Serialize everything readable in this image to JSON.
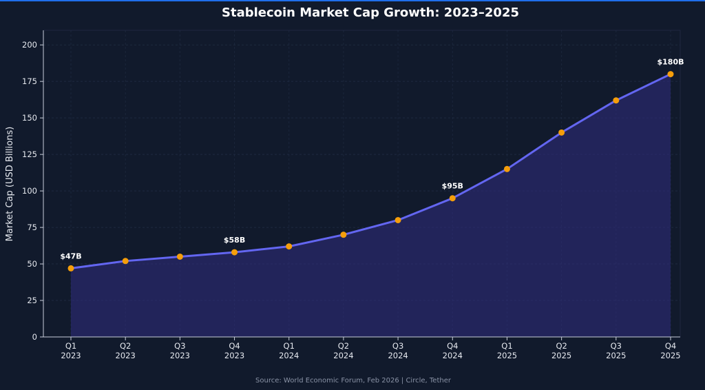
{
  "chart_data": {
    "type": "area",
    "title": "Stablecoin Market Cap Growth: 2023–2025",
    "xlabel": "",
    "ylabel": "Market Cap (USD Billions)",
    "categories": [
      "Q1\n2023",
      "Q2\n2023",
      "Q3\n2023",
      "Q4\n2023",
      "Q1\n2024",
      "Q2\n2024",
      "Q3\n2024",
      "Q4\n2024",
      "Q1\n2025",
      "Q2\n2025",
      "Q3\n2025",
      "Q4\n2025"
    ],
    "series": [
      {
        "values": [
          47,
          52,
          55,
          58,
          62,
          70,
          80,
          95,
          115,
          140,
          162,
          180
        ]
      }
    ],
    "ylim": [
      0,
      210
    ],
    "yticks": [
      0,
      25,
      50,
      75,
      100,
      125,
      150,
      175,
      200
    ],
    "data_labels": [
      {
        "index": 0,
        "text": "$47B"
      },
      {
        "index": 3,
        "text": "$58B"
      },
      {
        "index": 7,
        "text": "$95B"
      },
      {
        "index": 11,
        "text": "$180B"
      }
    ],
    "grid": true,
    "colors": {
      "line": "#6366f1",
      "fill": "#312e81",
      "marker": "#f59e0b",
      "grid": "#243049"
    },
    "source": "Source: World Economic Forum, Feb 2026 | Circle, Tether"
  }
}
